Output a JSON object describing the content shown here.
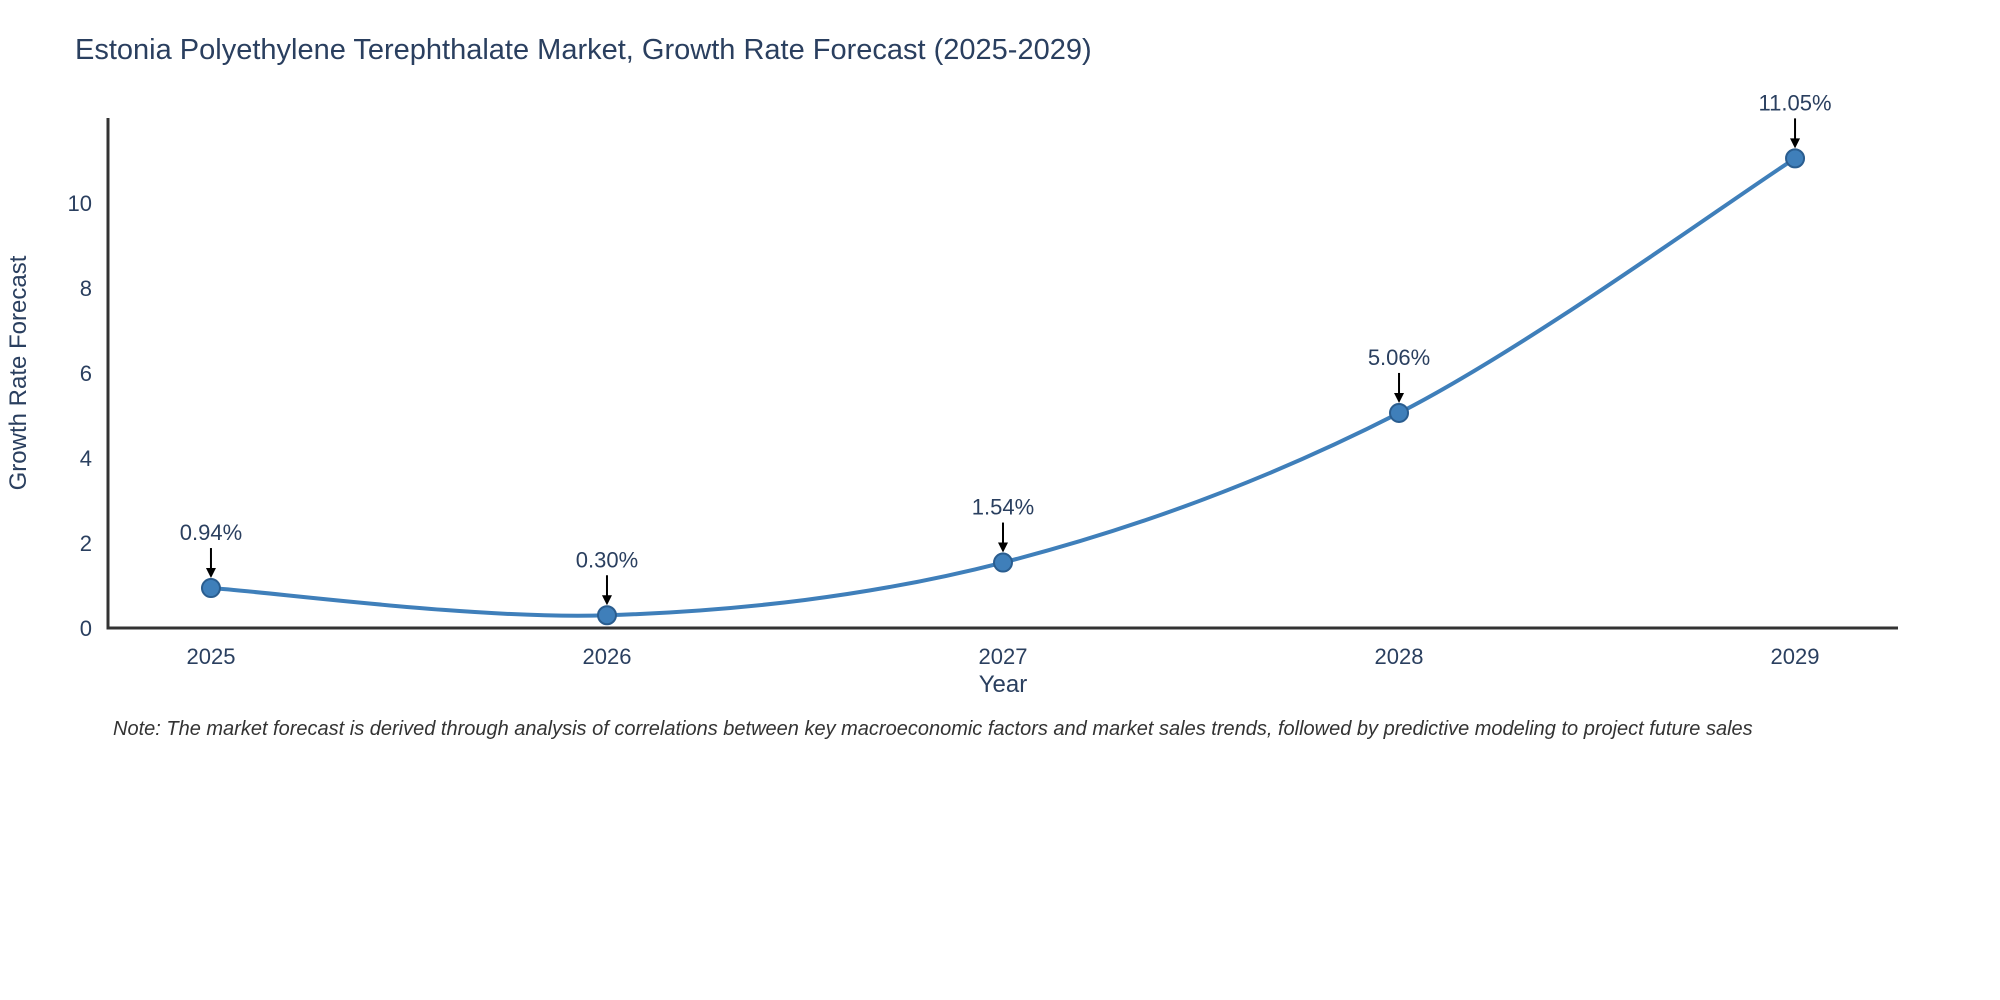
{
  "title": "Estonia Polyethylene Terephthalate Market, Growth Rate Forecast (2025-2029)",
  "note": "Note: The market forecast is derived through analysis of correlations between key macroeconomic factors and market sales trends, followed by predictive modeling to project future sales",
  "chart_data": {
    "type": "line",
    "title": "Estonia Polyethylene Terephthalate Market, Growth Rate Forecast (2025-2029)",
    "xlabel": "Year",
    "ylabel": "Growth Rate Forecast",
    "x": [
      2025,
      2026,
      2027,
      2028,
      2029
    ],
    "values": [
      0.94,
      0.3,
      1.54,
      5.06,
      11.05
    ],
    "labels": [
      "0.94%",
      "0.30%",
      "1.54%",
      "5.06%",
      "11.05%"
    ],
    "yticks": [
      0,
      2,
      4,
      6,
      8,
      10
    ],
    "xlim": [
      2024.74,
      2029.26
    ],
    "ylim": [
      0,
      12
    ],
    "grid": false,
    "legend": false,
    "line_shape": "spline",
    "line_color": "#3f7fba",
    "marker_color": "#3f7fba",
    "marker_edge_color": "#2a5d8f",
    "arrow_color": "#000000",
    "axis_color": "#333333",
    "text_color": "#2a3f5f"
  }
}
